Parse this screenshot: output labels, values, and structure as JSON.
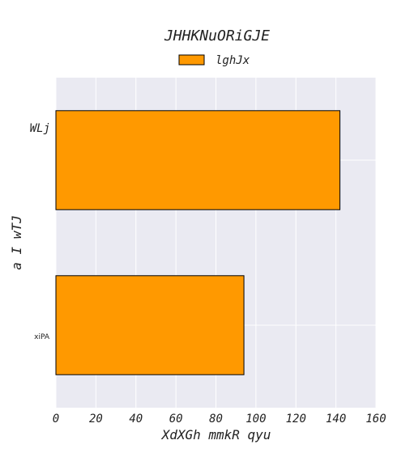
{
  "chart_data": {
    "type": "bar",
    "orientation": "horizontal",
    "title": "JHHKNuORiGJE",
    "xlabel": "XdXGh mmkR qyu",
    "ylabel": "a I wTJ",
    "categories": [
      "WLj",
      "xiPA"
    ],
    "series": [
      {
        "name": "lghJx",
        "values": [
          142,
          94
        ],
        "color": "#ff9900"
      }
    ],
    "xlim": [
      0,
      160
    ],
    "xticks": [
      "0",
      "20",
      "40",
      "60",
      "80",
      "100",
      "120",
      "140",
      "160"
    ],
    "grid": true,
    "legend_position": "top-center",
    "plot_background": "#eaeaf2",
    "bar_edge_color": "#000000"
  }
}
